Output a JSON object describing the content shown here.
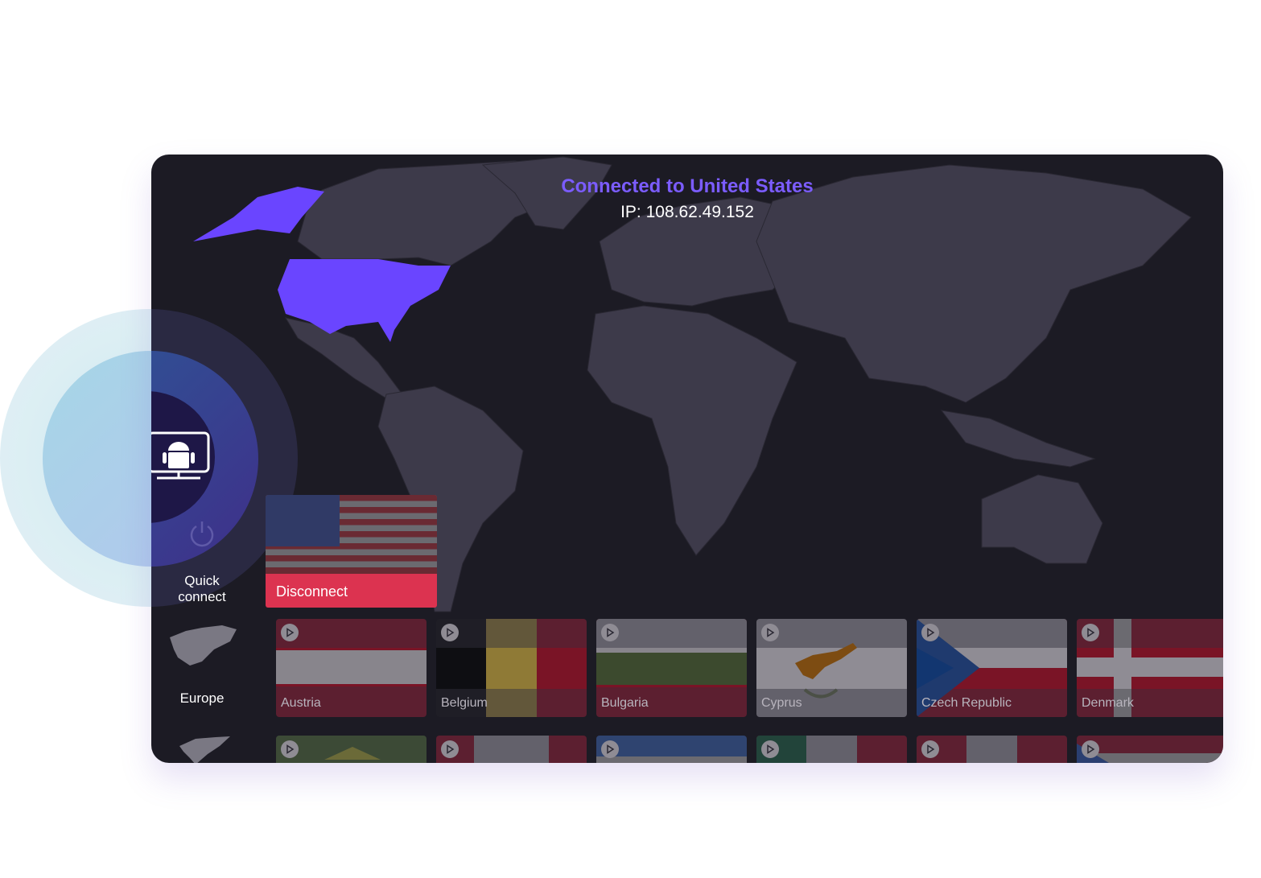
{
  "status": {
    "title": "Connected to United States",
    "ip": "IP: 108.62.49.152"
  },
  "colors": {
    "accent": "#7b5cff",
    "connected_country": "#6a45ff",
    "disconnect": "#dc3350",
    "card_bg": "#1c1b24",
    "land": "#3d3a4a"
  },
  "device": {
    "icon": "android-tv-icon"
  },
  "sidebar": {
    "quick_connect": "Quick\nconnect",
    "regions": [
      {
        "label": "Europe",
        "icon": "europe-map-icon"
      },
      {
        "label": "",
        "icon": "north-america-map-icon"
      }
    ]
  },
  "connected": {
    "country": "United States",
    "button": "Disconnect"
  },
  "countries": [
    {
      "name": "Austria"
    },
    {
      "name": "Belgium"
    },
    {
      "name": "Bulgaria"
    },
    {
      "name": "Cyprus"
    },
    {
      "name": "Czech Republic"
    },
    {
      "name": "Denmark"
    }
  ]
}
